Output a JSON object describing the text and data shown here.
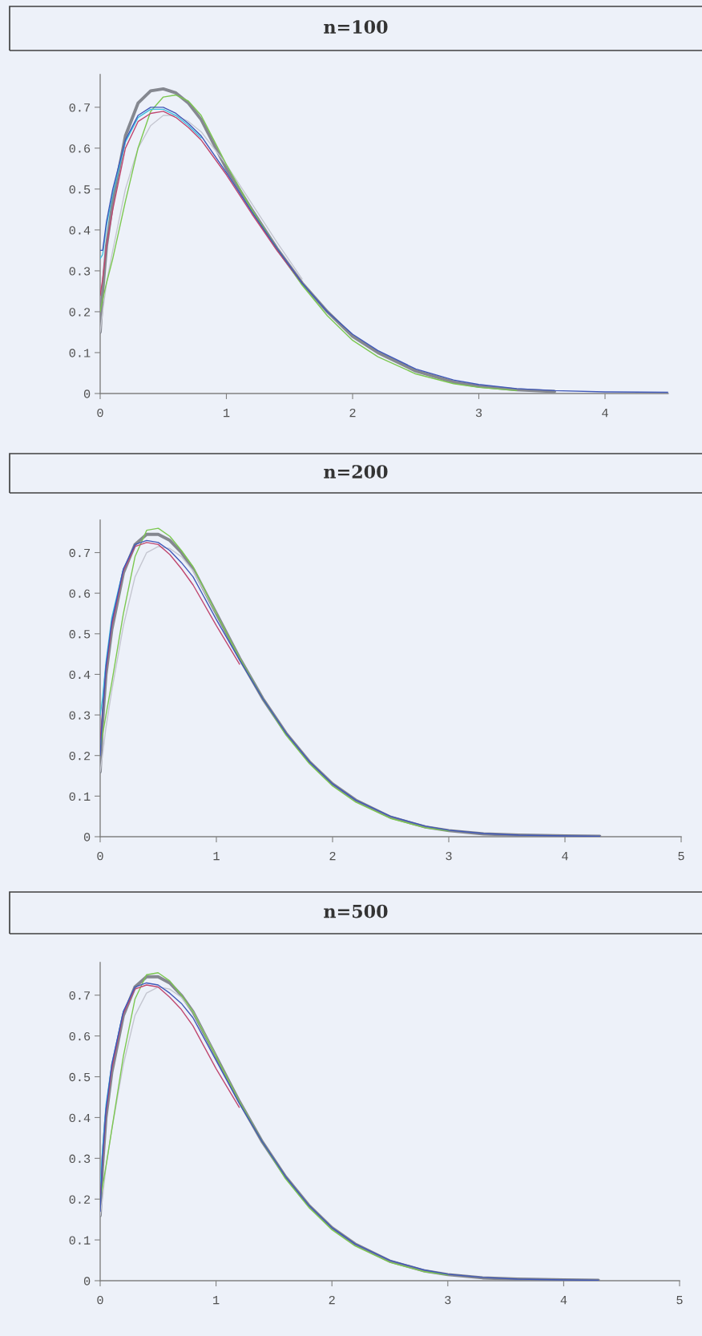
{
  "chart_data": [
    {
      "type": "line",
      "title": "n=100",
      "x": [
        0,
        0.02,
        0.05,
        0.1,
        0.2,
        0.3,
        0.4,
        0.5,
        0.6,
        0.7,
        0.8,
        1.0,
        1.2,
        1.4,
        1.6,
        1.8,
        2.0,
        2.2,
        2.5,
        2.8,
        3.0,
        3.3,
        3.6,
        4.0,
        4.5
      ],
      "series": [
        {
          "color": "#858890",
          "x": [
            0,
            0.02,
            0.05,
            0.1,
            0.2,
            0.3,
            0.4,
            0.5,
            0.6,
            0.7,
            0.8,
            1.0,
            1.2,
            1.4,
            1.6,
            1.8,
            2.0,
            2.2,
            2.5,
            2.8,
            3.0,
            3.3,
            3.6
          ],
          "values": [
            0.15,
            0.25,
            0.36,
            0.47,
            0.63,
            0.71,
            0.74,
            0.745,
            0.735,
            0.71,
            0.67,
            0.55,
            0.45,
            0.355,
            0.27,
            0.2,
            0.14,
            0.1,
            0.055,
            0.028,
            0.018,
            0.009,
            0.005
          ]
        },
        {
          "color": "#c4c6d0",
          "x": [
            0,
            0.02,
            0.05,
            0.1,
            0.2,
            0.3,
            0.4,
            0.5,
            0.6,
            0.7,
            0.8,
            1.0,
            1.2,
            1.4,
            1.6
          ],
          "values": [
            0.15,
            0.2,
            0.27,
            0.35,
            0.5,
            0.6,
            0.655,
            0.68,
            0.68,
            0.665,
            0.64,
            0.56,
            0.465,
            0.37,
            0.28
          ]
        },
        {
          "color": "#7cc850",
          "x": [
            0,
            0.02,
            0.05,
            0.1,
            0.2,
            0.3,
            0.4,
            0.5,
            0.6,
            0.7,
            0.8,
            1.0,
            1.2,
            1.4,
            1.6,
            1.8,
            2.0,
            2.2,
            2.5,
            2.8,
            3.0,
            3.3
          ],
          "values": [
            0.2,
            0.23,
            0.27,
            0.33,
            0.47,
            0.6,
            0.69,
            0.725,
            0.73,
            0.715,
            0.68,
            0.56,
            0.45,
            0.355,
            0.265,
            0.19,
            0.13,
            0.09,
            0.048,
            0.024,
            0.015,
            0.007
          ]
        },
        {
          "color": "#40c0e0",
          "x": [
            0,
            0.02,
            0.05,
            0.1,
            0.2,
            0.3,
            0.4,
            0.5,
            0.6,
            0.7,
            0.8
          ],
          "values": [
            0.33,
            0.34,
            0.41,
            0.49,
            0.615,
            0.675,
            0.695,
            0.695,
            0.68,
            0.655,
            0.625
          ]
        },
        {
          "color": "#c04870",
          "x": [
            0,
            0.02,
            0.05,
            0.1,
            0.2,
            0.3,
            0.4,
            0.5,
            0.6,
            0.7,
            0.8,
            1.0,
            1.2,
            1.4,
            1.6
          ],
          "values": [
            0.24,
            0.28,
            0.36,
            0.45,
            0.6,
            0.665,
            0.685,
            0.69,
            0.675,
            0.65,
            0.62,
            0.535,
            0.44,
            0.35,
            0.27
          ]
        },
        {
          "color": "#4058b8",
          "values": [
            0.35,
            0.35,
            0.42,
            0.5,
            0.62,
            0.68,
            0.7,
            0.7,
            0.685,
            0.66,
            0.63,
            0.54,
            0.445,
            0.355,
            0.27,
            0.2,
            0.145,
            0.105,
            0.06,
            0.033,
            0.022,
            0.012,
            0.007,
            0.004,
            0.003
          ]
        }
      ],
      "xlim": [
        0,
        4.5
      ],
      "ylim": [
        0,
        0.78
      ],
      "xticks": [
        0,
        1,
        2,
        3,
        4
      ],
      "yticks": [
        0,
        0.1,
        0.2,
        0.3,
        0.4,
        0.5,
        0.6,
        0.7
      ],
      "grid": false
    },
    {
      "type": "line",
      "title": "n=200",
      "x": [
        0,
        0.02,
        0.05,
        0.1,
        0.2,
        0.3,
        0.4,
        0.5,
        0.6,
        0.7,
        0.8,
        1.0,
        1.2,
        1.4,
        1.6,
        1.8,
        2.0,
        2.2,
        2.5,
        2.8,
        3.0,
        3.3,
        3.6,
        4.0,
        4.3
      ],
      "series": [
        {
          "color": "#858890",
          "values": [
            0.16,
            0.28,
            0.4,
            0.51,
            0.65,
            0.72,
            0.745,
            0.745,
            0.73,
            0.7,
            0.66,
            0.55,
            0.44,
            0.34,
            0.255,
            0.185,
            0.13,
            0.09,
            0.048,
            0.024,
            0.015,
            0.007,
            0.004,
            0.002,
            0.001
          ]
        },
        {
          "color": "#c4c6d0",
          "x": [
            0,
            0.02,
            0.05,
            0.1,
            0.2,
            0.3,
            0.4,
            0.5,
            0.6,
            0.7,
            0.8,
            1.0
          ],
          "values": [
            0.16,
            0.2,
            0.27,
            0.36,
            0.52,
            0.64,
            0.7,
            0.715,
            0.71,
            0.69,
            0.655,
            0.55
          ]
        },
        {
          "color": "#7cc850",
          "x": [
            0,
            0.02,
            0.05,
            0.1,
            0.2,
            0.3,
            0.4,
            0.5,
            0.6,
            0.7,
            0.8,
            1.0,
            1.2,
            1.4,
            1.6,
            1.8,
            2.0,
            2.2,
            2.5,
            2.8,
            3.0
          ],
          "values": [
            0.22,
            0.25,
            0.3,
            0.38,
            0.55,
            0.69,
            0.755,
            0.76,
            0.74,
            0.705,
            0.665,
            0.55,
            0.44,
            0.34,
            0.25,
            0.18,
            0.125,
            0.085,
            0.045,
            0.022,
            0.014
          ]
        },
        {
          "color": "#40c0e0",
          "x": [
            0,
            0.02,
            0.05,
            0.1,
            0.2,
            0.3
          ],
          "values": [
            0.3,
            0.34,
            0.43,
            0.54,
            0.66,
            0.715
          ]
        },
        {
          "color": "#c04870",
          "x": [
            0,
            0.02,
            0.05,
            0.1,
            0.2,
            0.3,
            0.4,
            0.5,
            0.6,
            0.7,
            0.8,
            1.0,
            1.2
          ],
          "values": [
            0.24,
            0.3,
            0.41,
            0.52,
            0.655,
            0.715,
            0.725,
            0.72,
            0.695,
            0.66,
            0.62,
            0.52,
            0.425
          ]
        },
        {
          "color": "#4058b8",
          "values": [
            0.2,
            0.3,
            0.42,
            0.53,
            0.66,
            0.72,
            0.73,
            0.725,
            0.705,
            0.675,
            0.64,
            0.535,
            0.435,
            0.34,
            0.255,
            0.185,
            0.13,
            0.09,
            0.05,
            0.026,
            0.016,
            0.008,
            0.004,
            0.002,
            0.001
          ]
        }
      ],
      "xlim": [
        0,
        5
      ],
      "ylim": [
        0,
        0.78
      ],
      "xticks": [
        0,
        1,
        2,
        3,
        4,
        5
      ],
      "yticks": [
        0,
        0.1,
        0.2,
        0.3,
        0.4,
        0.5,
        0.6,
        0.7
      ],
      "grid": false
    },
    {
      "type": "line",
      "title": "n=500",
      "x": [
        0,
        0.02,
        0.05,
        0.1,
        0.2,
        0.3,
        0.4,
        0.5,
        0.6,
        0.7,
        0.8,
        1.0,
        1.2,
        1.4,
        1.6,
        1.8,
        2.0,
        2.2,
        2.5,
        2.8,
        3.0,
        3.3,
        3.6,
        4.0,
        4.3
      ],
      "series": [
        {
          "color": "#858890",
          "values": [
            0.16,
            0.28,
            0.4,
            0.51,
            0.65,
            0.72,
            0.745,
            0.745,
            0.73,
            0.7,
            0.66,
            0.55,
            0.44,
            0.34,
            0.255,
            0.185,
            0.13,
            0.09,
            0.048,
            0.024,
            0.015,
            0.007,
            0.004,
            0.002,
            0.001
          ]
        },
        {
          "color": "#c4c6d0",
          "x": [
            0,
            0.02,
            0.05,
            0.1,
            0.2,
            0.3,
            0.4,
            0.5,
            0.6,
            0.7,
            0.8,
            1.0
          ],
          "values": [
            0.16,
            0.2,
            0.28,
            0.37,
            0.53,
            0.65,
            0.705,
            0.72,
            0.715,
            0.695,
            0.66,
            0.55
          ]
        },
        {
          "color": "#7cc850",
          "x": [
            0,
            0.02,
            0.05,
            0.1,
            0.2,
            0.3,
            0.4,
            0.5,
            0.6,
            0.7,
            0.8,
            1.0,
            1.2,
            1.4,
            1.6,
            1.8,
            2.0,
            2.2,
            2.5,
            2.8,
            3.0
          ],
          "values": [
            0.2,
            0.23,
            0.28,
            0.37,
            0.55,
            0.69,
            0.75,
            0.755,
            0.735,
            0.7,
            0.66,
            0.55,
            0.44,
            0.34,
            0.25,
            0.18,
            0.125,
            0.085,
            0.045,
            0.022,
            0.014
          ]
        },
        {
          "color": "#40c0e0",
          "x": [
            0,
            0.02,
            0.05,
            0.1,
            0.2,
            0.3
          ],
          "values": [
            0.23,
            0.32,
            0.43,
            0.53,
            0.66,
            0.715
          ]
        },
        {
          "color": "#c04870",
          "x": [
            0,
            0.02,
            0.05,
            0.1,
            0.2,
            0.3,
            0.4,
            0.5,
            0.6,
            0.7,
            0.8,
            1.0,
            1.2
          ],
          "values": [
            0.2,
            0.29,
            0.41,
            0.52,
            0.655,
            0.715,
            0.725,
            0.72,
            0.695,
            0.665,
            0.625,
            0.52,
            0.425
          ]
        },
        {
          "color": "#4058b8",
          "values": [
            0.17,
            0.3,
            0.42,
            0.53,
            0.66,
            0.72,
            0.73,
            0.725,
            0.705,
            0.68,
            0.645,
            0.54,
            0.435,
            0.34,
            0.255,
            0.185,
            0.13,
            0.09,
            0.05,
            0.026,
            0.016,
            0.008,
            0.004,
            0.002,
            0.001
          ]
        }
      ],
      "xlim": [
        0,
        5
      ],
      "ylim": [
        0,
        0.78
      ],
      "xticks": [
        0,
        1,
        2,
        3,
        4,
        5
      ],
      "yticks": [
        0,
        0.1,
        0.2,
        0.3,
        0.4,
        0.5,
        0.6,
        0.7
      ],
      "grid": false
    }
  ]
}
